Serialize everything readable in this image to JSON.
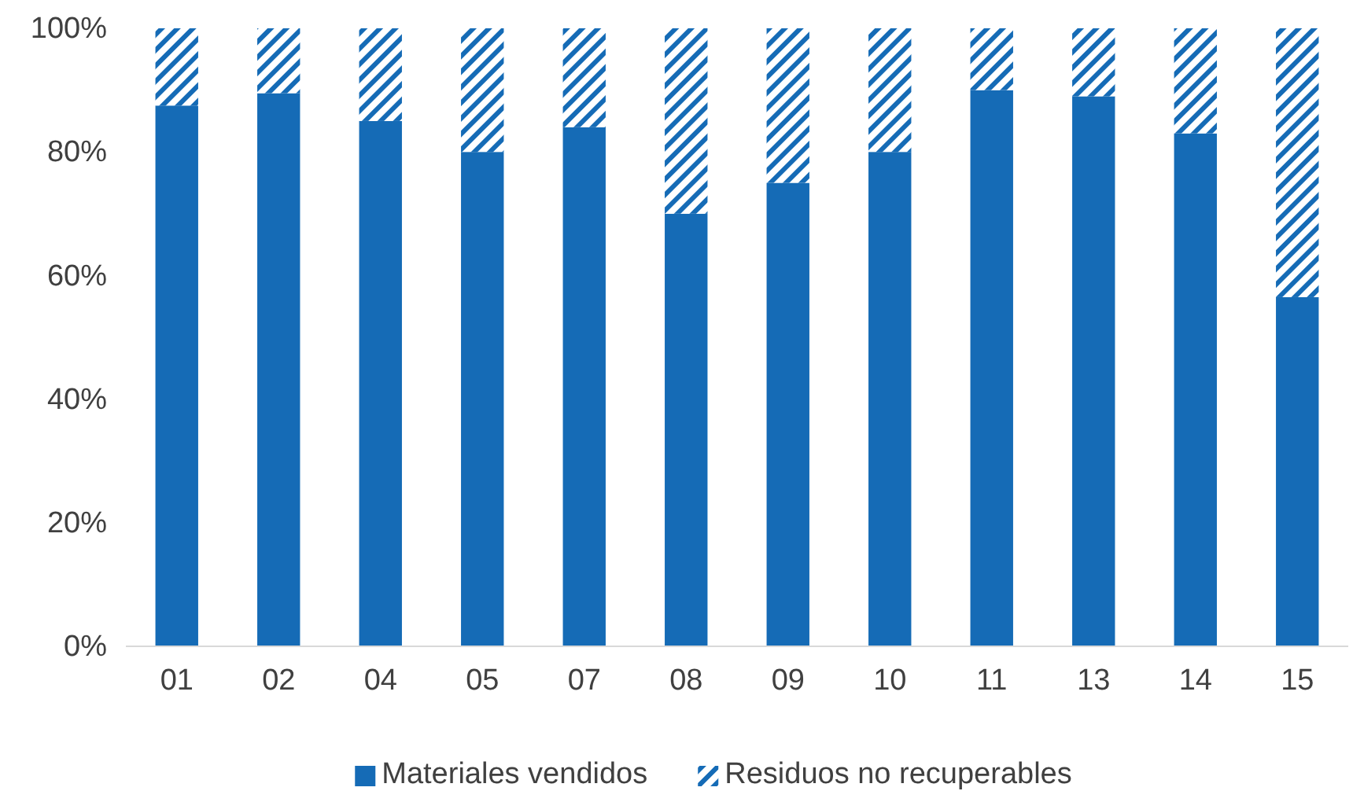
{
  "chart_data": {
    "type": "bar",
    "stacked": true,
    "categories": [
      "01",
      "02",
      "04",
      "05",
      "07",
      "08",
      "09",
      "10",
      "11",
      "13",
      "14",
      "15"
    ],
    "series": [
      {
        "name": "Materiales vendidos",
        "color": "#156bb6",
        "values": [
          87.5,
          89.5,
          85,
          80,
          84,
          70,
          75,
          80,
          90,
          89,
          83,
          56.5
        ]
      },
      {
        "name": "Residuos no recuperables",
        "color": "#156bb6",
        "values": [
          12.5,
          10.5,
          15,
          20,
          16,
          30,
          25,
          20,
          10,
          11,
          17,
          43.5
        ]
      }
    ],
    "ylim": [
      0,
      100
    ],
    "yticks": [
      {
        "value": 0,
        "label": "0%"
      },
      {
        "value": 20,
        "label": "20%"
      },
      {
        "value": 40,
        "label": "40%"
      },
      {
        "value": 60,
        "label": "60%"
      },
      {
        "value": 80,
        "label": "80%"
      },
      {
        "value": 100,
        "label": "100%"
      }
    ],
    "grid": false,
    "legend": "bottom"
  }
}
